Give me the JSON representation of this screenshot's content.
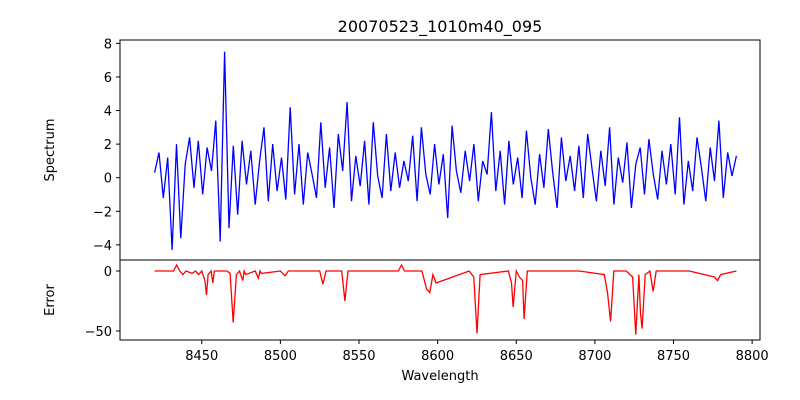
{
  "chart_data": [
    {
      "type": "line",
      "title": "20070523_1010m40_095",
      "ylabel": "Spectrum",
      "xlabel": "",
      "xlim": [
        8398,
        8805
      ],
      "ylim": [
        -4.9,
        8.2
      ],
      "yticks": [
        -4,
        -2,
        0,
        2,
        4,
        6,
        8
      ],
      "color": "#0000ff",
      "x_start": 8420,
      "x_end": 8790,
      "values": [
        0.3,
        1.5,
        -1.2,
        1.2,
        -4.3,
        2.0,
        -3.6,
        0.8,
        2.4,
        -0.6,
        2.2,
        -1.0,
        1.8,
        0.4,
        3.4,
        -3.8,
        7.5,
        -3.0,
        1.9,
        -2.2,
        2.2,
        -0.4,
        1.6,
        -1.6,
        1.0,
        3.0,
        -1.4,
        2.0,
        -0.8,
        1.2,
        -1.3,
        4.2,
        -1.0,
        2.0,
        -1.6,
        1.5,
        0.2,
        -1.2,
        3.3,
        -0.6,
        1.8,
        -1.8,
        2.6,
        0.4,
        4.5,
        -1.4,
        1.3,
        -0.5,
        2.2,
        -1.6,
        3.3,
        0.1,
        -1.2,
        2.6,
        -0.8,
        1.5,
        -0.6,
        1.0,
        -0.2,
        2.5,
        -1.4,
        3.0,
        0.2,
        -1.0,
        2.0,
        -0.4,
        1.4,
        -2.4,
        3.1,
        0.4,
        -0.9,
        1.6,
        -0.2,
        2.0,
        -1.4,
        1.0,
        0.2,
        3.9,
        -0.8,
        1.6,
        -1.6,
        2.2,
        -0.4,
        1.2,
        -1.2,
        2.8,
        0.0,
        -1.6,
        1.4,
        -0.6,
        2.9,
        0.3,
        -1.8,
        2.4,
        -0.2,
        1.3,
        -0.8,
        1.9,
        -1.2,
        2.6,
        0.5,
        -1.4,
        1.6,
        -0.5,
        3.0,
        -1.6,
        1.2,
        -0.3,
        2.1,
        -1.8,
        0.8,
        1.8,
        -1.0,
        2.3,
        0.2,
        -1.3,
        1.6,
        -0.4,
        2.0,
        -1.0,
        3.6,
        -1.6,
        1.0,
        -0.8,
        2.4,
        0.6,
        -1.4,
        1.8,
        -0.2,
        3.4,
        -1.2,
        1.5,
        0.1,
        1.3
      ]
    },
    {
      "type": "line",
      "ylabel": "Error",
      "xlabel": "Wavelength",
      "xlim": [
        8398,
        8805
      ],
      "ylim": [
        -57.5,
        9.2
      ],
      "yticks": [
        -50,
        0
      ],
      "xticks": [
        8450,
        8500,
        8550,
        8600,
        8650,
        8700,
        8750,
        8800
      ],
      "color": "#ff0000",
      "x": [
        8420,
        8432,
        8434,
        8436,
        8438,
        8440,
        8444,
        8446,
        8448,
        8450,
        8452,
        8453,
        8454,
        8456,
        8457,
        8458,
        8466,
        8468,
        8470,
        8472,
        8474,
        8476,
        8477,
        8478,
        8484,
        8486,
        8487,
        8488,
        8500,
        8503,
        8505,
        8525,
        8527,
        8529,
        8539,
        8541,
        8543,
        8560,
        8575,
        8577,
        8579,
        8590,
        8593,
        8595,
        8597,
        8599,
        8620,
        8623,
        8625,
        8627,
        8645,
        8647,
        8648,
        8650,
        8652,
        8654,
        8655,
        8657,
        8690,
        8706,
        8708,
        8710,
        8712,
        8720,
        8724,
        8726,
        8728,
        8729,
        8730,
        8732,
        8735,
        8737,
        8739,
        8760,
        8776,
        8778,
        8780,
        8790
      ],
      "y": [
        0,
        0,
        5,
        0,
        -3,
        0,
        -2,
        0,
        -3,
        0,
        -8,
        -20,
        -3,
        0,
        -10,
        0,
        0,
        -2,
        -43,
        -3,
        0,
        -8,
        0,
        -3,
        0,
        -6,
        0,
        -2,
        0,
        -4,
        0,
        0,
        -11,
        0,
        0,
        -25,
        0,
        0,
        0,
        5,
        0,
        0,
        -15,
        -18,
        -3,
        -10,
        0,
        -5,
        -52,
        -3,
        0,
        -10,
        -30,
        0,
        -5,
        -8,
        -40,
        0,
        0,
        -3,
        -18,
        -42,
        0,
        0,
        -5,
        -53,
        -3,
        -35,
        -48,
        -3,
        0,
        -17,
        0,
        0,
        -5,
        -8,
        -3,
        0
      ]
    }
  ]
}
